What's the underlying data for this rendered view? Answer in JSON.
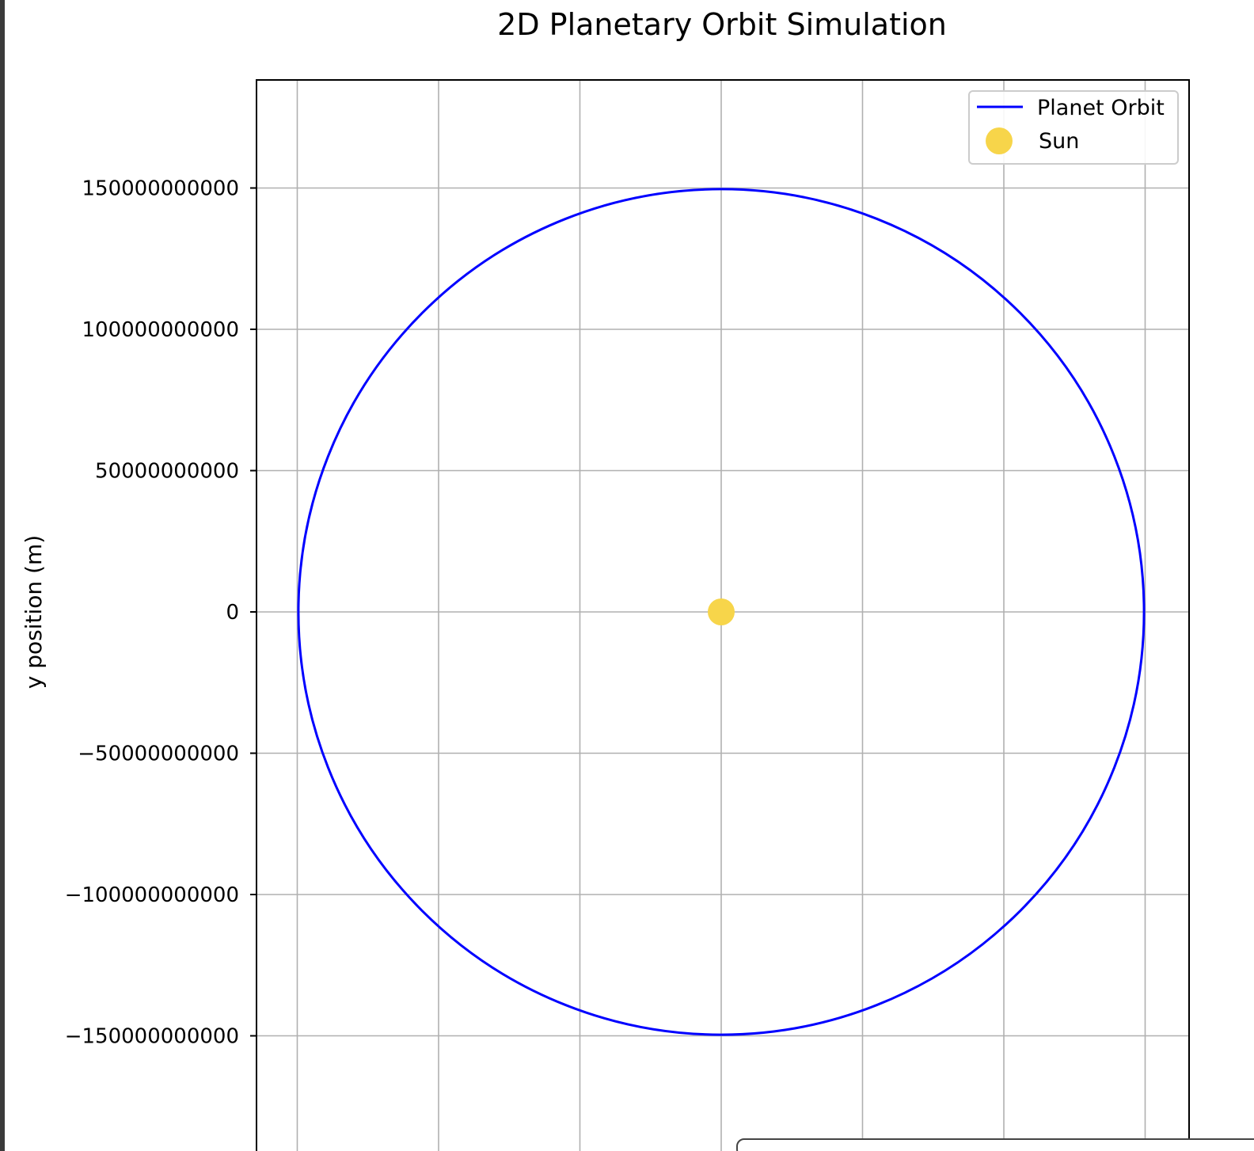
{
  "chart_data": {
    "type": "line",
    "title": "2D Planetary Orbit Simulation",
    "xlabel": "",
    "ylabel": "y position (m)",
    "xlim": [
      -165000000000,
      165000000000
    ],
    "ylim": [
      -188000000000,
      188000000000
    ],
    "grid": true,
    "legend_position": "top-right",
    "x_gridlines": [
      -150000000000,
      -100000000000,
      -50000000000,
      0,
      50000000000,
      100000000000,
      150000000000
    ],
    "y_ticks": [
      150000000000,
      100000000000,
      50000000000,
      0,
      -50000000000,
      -100000000000,
      -150000000000
    ],
    "y_tick_labels": [
      "150000000000",
      "100000000000",
      "50000000000",
      "0",
      "−50000000000",
      "−100000000000",
      "−150000000000"
    ],
    "series": [
      {
        "name": "Planet Orbit",
        "kind": "line",
        "color": "#0000ff",
        "center": [
          0,
          0
        ],
        "radius": 149600000000
      },
      {
        "name": "Sun",
        "kind": "point",
        "color": "#f7d54a",
        "x": [
          0
        ],
        "y": [
          0
        ]
      }
    ]
  }
}
